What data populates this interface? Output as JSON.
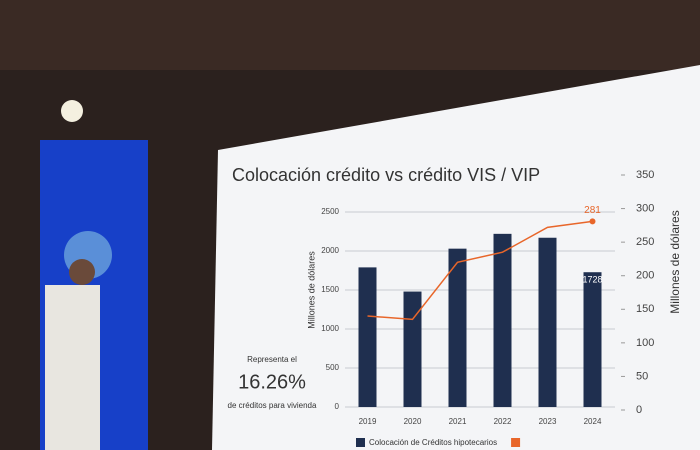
{
  "chart_data": {
    "type": "bar",
    "title": "Colocación crédito vs crédito VIS / VIP",
    "categories": [
      "2019",
      "2020",
      "2021",
      "2022",
      "2023",
      "2024"
    ],
    "series": [
      {
        "name": "Colocación de Créditos hipotecarios",
        "color": "#1f2f4f",
        "values": [
          1790,
          1480,
          2030,
          2220,
          2170,
          1728
        ]
      },
      {
        "type": "line",
        "axis": "y2",
        "color": "#e8662a",
        "values": [
          140,
          135,
          220,
          235,
          272,
          281
        ]
      }
    ],
    "ylim": [
      0,
      2500
    ],
    "yticks": [
      0,
      500,
      1000,
      1500,
      2000,
      2500
    ],
    "y2lim": [
      0,
      350
    ],
    "y2ticks": [
      0,
      50,
      100,
      150,
      200,
      250,
      300,
      350
    ],
    "ylabel": "Millones de dólares",
    "y2label": "Millones de dólares",
    "grid": true,
    "annotation": {
      "lines": [
        "Representa el",
        "16.26%",
        "de créditos para vivienda"
      ]
    }
  }
}
